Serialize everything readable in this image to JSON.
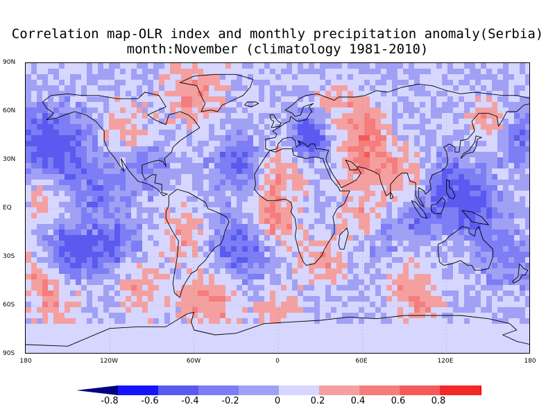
{
  "title": {
    "line1": "Correlation map-OLR index and monthly precipitation anomaly(Serbia)",
    "line2": "month:November (climatology 1981-2010)"
  },
  "map": {
    "lat_labels": [
      "90N",
      "60N",
      "30N",
      "EQ",
      "30S",
      "60S",
      "90S"
    ],
    "lon_labels": [
      "180",
      "120W",
      "60W",
      "0",
      "60E",
      "120E",
      "180"
    ],
    "projection": "cylindrical equidistant",
    "lon_range": [
      -180,
      180
    ],
    "lat_range": [
      -90,
      90
    ]
  },
  "colorbar": {
    "tick_labels": [
      "-0.8",
      "-0.6",
      "-0.4",
      "-0.2",
      "0",
      "0.2",
      "0.4",
      "0.6",
      "0.8"
    ],
    "colors": [
      "#000080",
      "#1414ff",
      "#5a5af0",
      "#7d7df5",
      "#a0a0f5",
      "#d6d6ff",
      "#f5a0a0",
      "#f57d7d",
      "#f55a5a",
      "#f52828",
      "#ff0000"
    ]
  }
}
